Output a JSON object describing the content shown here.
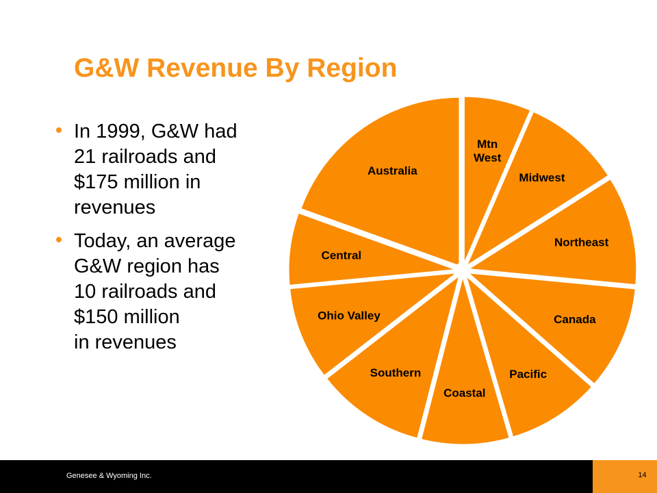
{
  "slide": {
    "title": "G&W Revenue By Region",
    "bullets": [
      "In 1999, G&W had\n21 railroads and\n$175 million in\nrevenues",
      "Today, an average\nG&W region has\n10 railroads and\n$150 million\nin revenues"
    ]
  },
  "colors": {
    "accent": "#F7941D",
    "pie_fill": "#FB8B00",
    "footer_bg": "#000000"
  },
  "chart_data": {
    "type": "pie",
    "labels": [
      "Mtn\nWest",
      "Midwest",
      "Northeast",
      "Canada",
      "Pacific",
      "Coastal",
      "Southern",
      "Ohio Valley",
      "Central",
      "Australia"
    ],
    "values": [
      6.5,
      9.5,
      10.5,
      10,
      9,
      8.5,
      10.5,
      9,
      7,
      19.5
    ]
  },
  "footer": {
    "company": "Genesee & Wyoming Inc.",
    "page_number": "14"
  }
}
